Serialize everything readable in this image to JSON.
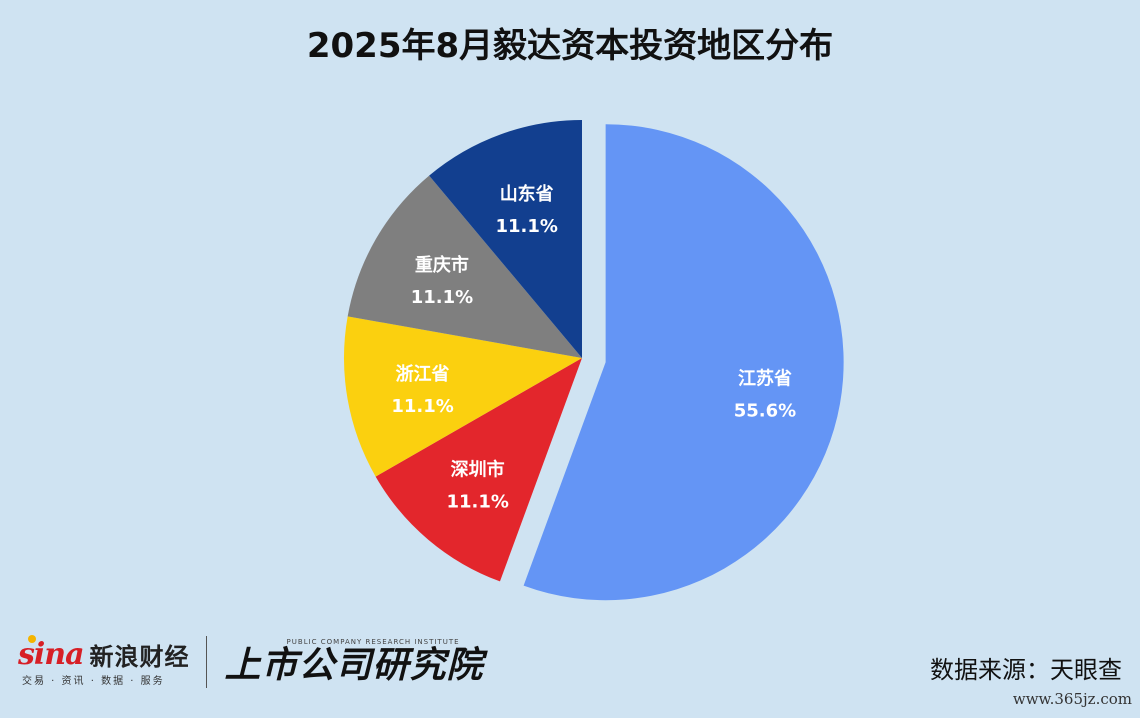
{
  "title": "2025年8月毅达资本投资地区分布",
  "chart_data": {
    "type": "pie",
    "title": "2025年8月毅达资本投资地区分布",
    "slices": [
      {
        "label": "江苏省",
        "value": 55.6,
        "value_label": "55.6%",
        "color": "#6495f5",
        "exploded": true
      },
      {
        "label": "深圳市",
        "value": 11.1,
        "value_label": "11.1%",
        "color": "#e3262c",
        "exploded": false
      },
      {
        "label": "浙江省",
        "value": 11.1,
        "value_label": "11.1%",
        "color": "#fbd00f",
        "exploded": false
      },
      {
        "label": "重庆市",
        "value": 11.1,
        "value_label": "11.1%",
        "color": "#7f7f7f",
        "exploded": false
      },
      {
        "label": "山东省",
        "value": 11.1,
        "value_label": "11.1%",
        "color": "#123f8f",
        "exploded": false
      }
    ]
  },
  "footer": {
    "sina_mark": "sina",
    "sina_name": "新浪财经",
    "sina_sub": "交易 · 资讯 · 数据 · 服务",
    "pub_en": "PUBLIC COMPANY RESEARCH INSTITUTE",
    "pub_cn": "上市公司研究院",
    "source": "数据来源：天眼查",
    "watermark": "www.365jz.com"
  }
}
